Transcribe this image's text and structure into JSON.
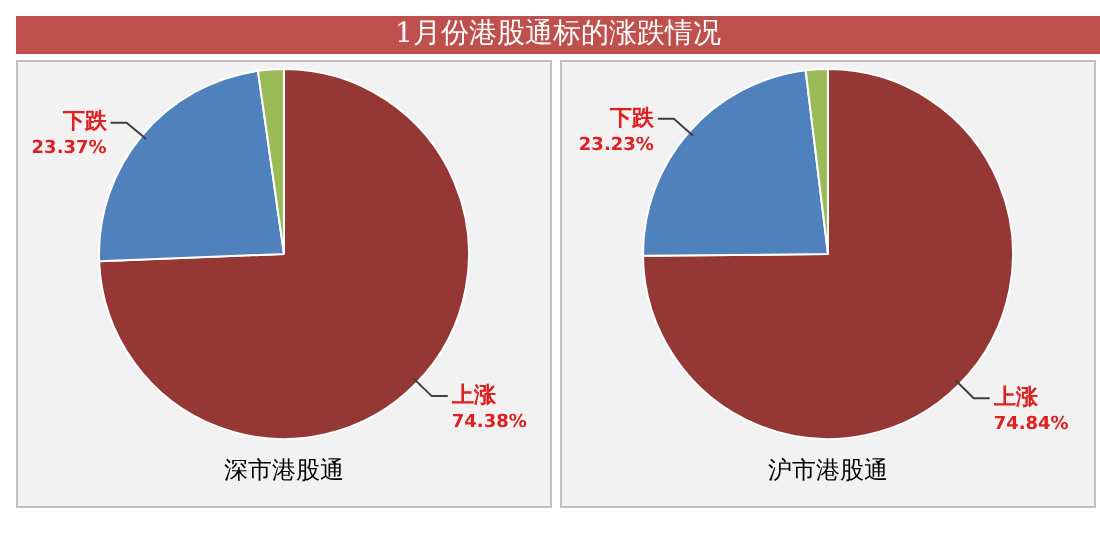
{
  "chart_data": [
    {
      "type": "pie",
      "title": "1月份港股通标的涨跌情况",
      "xlabel": "深市港股通",
      "categories": [
        "上涨",
        "下跌",
        null
      ],
      "values": [
        74.38,
        23.37,
        2.25
      ],
      "colors": [
        "#953735",
        "#4f81bd",
        "#9bbb59"
      ],
      "value_labels": [
        "74.38%",
        "23.37%",
        null
      ],
      "legend": false
    },
    {
      "type": "pie",
      "xlabel": "沪市港股通",
      "categories": [
        "上涨",
        "下跌",
        null
      ],
      "values": [
        74.84,
        23.23,
        1.93
      ],
      "colors": [
        "#953735",
        "#4f81bd",
        "#9bbb59"
      ],
      "value_labels": [
        "74.84%",
        "23.23%",
        null
      ],
      "legend": false
    }
  ]
}
